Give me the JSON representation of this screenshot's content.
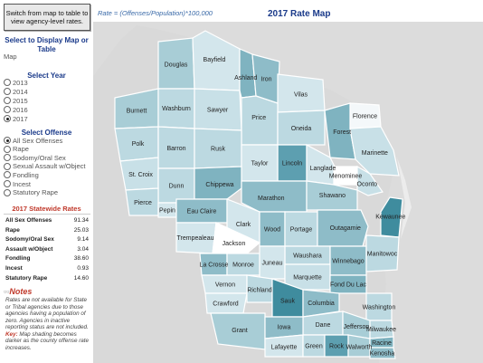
{
  "sidebar": {
    "switch_button": "Switch from map to table to view agency-level rates.",
    "display_title": "Select to Display Map or Table",
    "display_value": "Map",
    "year_title": "Select Year",
    "years": [
      "2013",
      "2014",
      "2015",
      "2016",
      "2017"
    ],
    "selected_year": "2017",
    "offense_title": "Select Offense",
    "offenses": [
      "All Sex Offenses",
      "Rape",
      "Sodomy/Oral Sex",
      "Sexual Assault w/Object",
      "Fondling",
      "Incest",
      "Statutory Rape"
    ],
    "selected_offense": "All Sex Offenses",
    "rates_title": "2017 Statewide Rates",
    "rates": [
      {
        "label": "All Sex Offenses",
        "value": "91.34"
      },
      {
        "label": "Rape",
        "value": "25.03"
      },
      {
        "label": "Sodomy/Oral Sex",
        "value": "9.14"
      },
      {
        "label": "Assault w/Object",
        "value": "3.04"
      },
      {
        "label": "Fondling",
        "value": "38.60"
      },
      {
        "label": "Incest",
        "value": "0.93"
      },
      {
        "label": "Statutory Rape",
        "value": "14.60"
      }
    ],
    "notes_title": "Notes",
    "notes_text_1": "Rates are not available for State or Tribal agencies due to those agencies having a population of zero. Agencies in inactive reporting status are not included.",
    "notes_key": "Key:",
    "notes_text_2": "Map shading becomes darker as the county offense rate increases."
  },
  "map": {
    "formula": "Rate = (Offenses/Population)*100,000",
    "title": "2017 Rate Map",
    "background_color": "#dcdcdc",
    "counties": [
      {
        "name": "Douglas",
        "shade": "#a8cdd6"
      },
      {
        "name": "Bayfield",
        "shade": "#d3e6ec"
      },
      {
        "name": "Ashland",
        "shade": "#7fb3c0"
      },
      {
        "name": "Iron",
        "shade": "#8ebcc8"
      },
      {
        "name": "Vilas",
        "shade": "#d3e6ec"
      },
      {
        "name": "Florence",
        "shade": "#f4f8fa"
      },
      {
        "name": "Burnett",
        "shade": "#a8cdd6"
      },
      {
        "name": "Washburn",
        "shade": "#bcd9e1"
      },
      {
        "name": "Sawyer",
        "shade": "#c8e0e7"
      },
      {
        "name": "Price",
        "shade": "#bcd9e1"
      },
      {
        "name": "Oneida",
        "shade": "#bcd9e1"
      },
      {
        "name": "Forest",
        "shade": "#7fb3c0"
      },
      {
        "name": "Marinette",
        "shade": "#c8e0e7"
      },
      {
        "name": "Polk",
        "shade": "#bcd9e1"
      },
      {
        "name": "Barron",
        "shade": "#bcd9e1"
      },
      {
        "name": "Rusk",
        "shade": "#bcd9e1"
      },
      {
        "name": "Lincoln",
        "shade": "#5d9fb0"
      },
      {
        "name": "Langlade",
        "shade": "#d3e6ec"
      },
      {
        "name": "Menominee",
        "shade": "#ffffff"
      },
      {
        "name": "Oconto",
        "shade": "#c8e0e7"
      },
      {
        "name": "Taylor",
        "shade": "#d3e6ec"
      },
      {
        "name": "St. Croix",
        "shade": "#c8e0e7"
      },
      {
        "name": "Dunn",
        "shade": "#bcd9e1"
      },
      {
        "name": "Chippewa",
        "shade": "#7fb3c0"
      },
      {
        "name": "Marathon",
        "shade": "#8ebcc8"
      },
      {
        "name": "Shawano",
        "shade": "#a8cdd6"
      },
      {
        "name": "Pierce",
        "shade": "#bcd9e1"
      },
      {
        "name": "Pepin",
        "shade": "#d3e6ec"
      },
      {
        "name": "Eau Claire",
        "shade": "#8ebcc8"
      },
      {
        "name": "Clark",
        "shade": "#d3e6ec"
      },
      {
        "name": "Wood",
        "shade": "#8ebcc8"
      },
      {
        "name": "Portage",
        "shade": "#bcd9e1"
      },
      {
        "name": "Outagamie",
        "shade": "#8ebcc8"
      },
      {
        "name": "Kewaunee",
        "shade": "#3f8c9e"
      },
      {
        "name": "Trempealeau",
        "shade": "#d3e6ec"
      },
      {
        "name": "Jackson",
        "shade": "#ffffff"
      },
      {
        "name": "Waushara",
        "shade": "#bcd9e1"
      },
      {
        "name": "Winnebago",
        "shade": "#8ebcc8"
      },
      {
        "name": "Manitowoc",
        "shade": "#bcd9e1"
      },
      {
        "name": "La Crosse",
        "shade": "#8ebcc8"
      },
      {
        "name": "Monroe",
        "shade": "#bcd9e1"
      },
      {
        "name": "Juneau",
        "shade": "#d3e6ec"
      },
      {
        "name": "Marquette",
        "shade": "#c8e0e7"
      },
      {
        "name": "Fond Du Lac",
        "shade": "#7fb3c0"
      },
      {
        "name": "Vernon",
        "shade": "#d3e6ec"
      },
      {
        "name": "Richland",
        "shade": "#bcd9e1"
      },
      {
        "name": "Sauk",
        "shade": "#3f8c9e"
      },
      {
        "name": "Columbia",
        "shade": "#8ebcc8"
      },
      {
        "name": "Washington",
        "shade": "#bcd9e1"
      },
      {
        "name": "Crawford",
        "shade": "#d3e6ec"
      },
      {
        "name": "Dane",
        "shade": "#bcd9e1"
      },
      {
        "name": "Grant",
        "shade": "#a8cdd6"
      },
      {
        "name": "Iowa",
        "shade": "#8ebcc8"
      },
      {
        "name": "Jefferson",
        "shade": "#a8cdd6"
      },
      {
        "name": "Milwaukee",
        "shade": "#bcd9e1"
      },
      {
        "name": "Lafayette",
        "shade": "#d3e6ec"
      },
      {
        "name": "Green",
        "shade": "#bcd9e1"
      },
      {
        "name": "Rock",
        "shade": "#5d9fb0"
      },
      {
        "name": "Walworth",
        "shade": "#a8cdd6"
      },
      {
        "name": "Racine",
        "shade": "#7fb3c0"
      },
      {
        "name": "Kenosha",
        "shade": "#8ebcc8"
      }
    ]
  }
}
